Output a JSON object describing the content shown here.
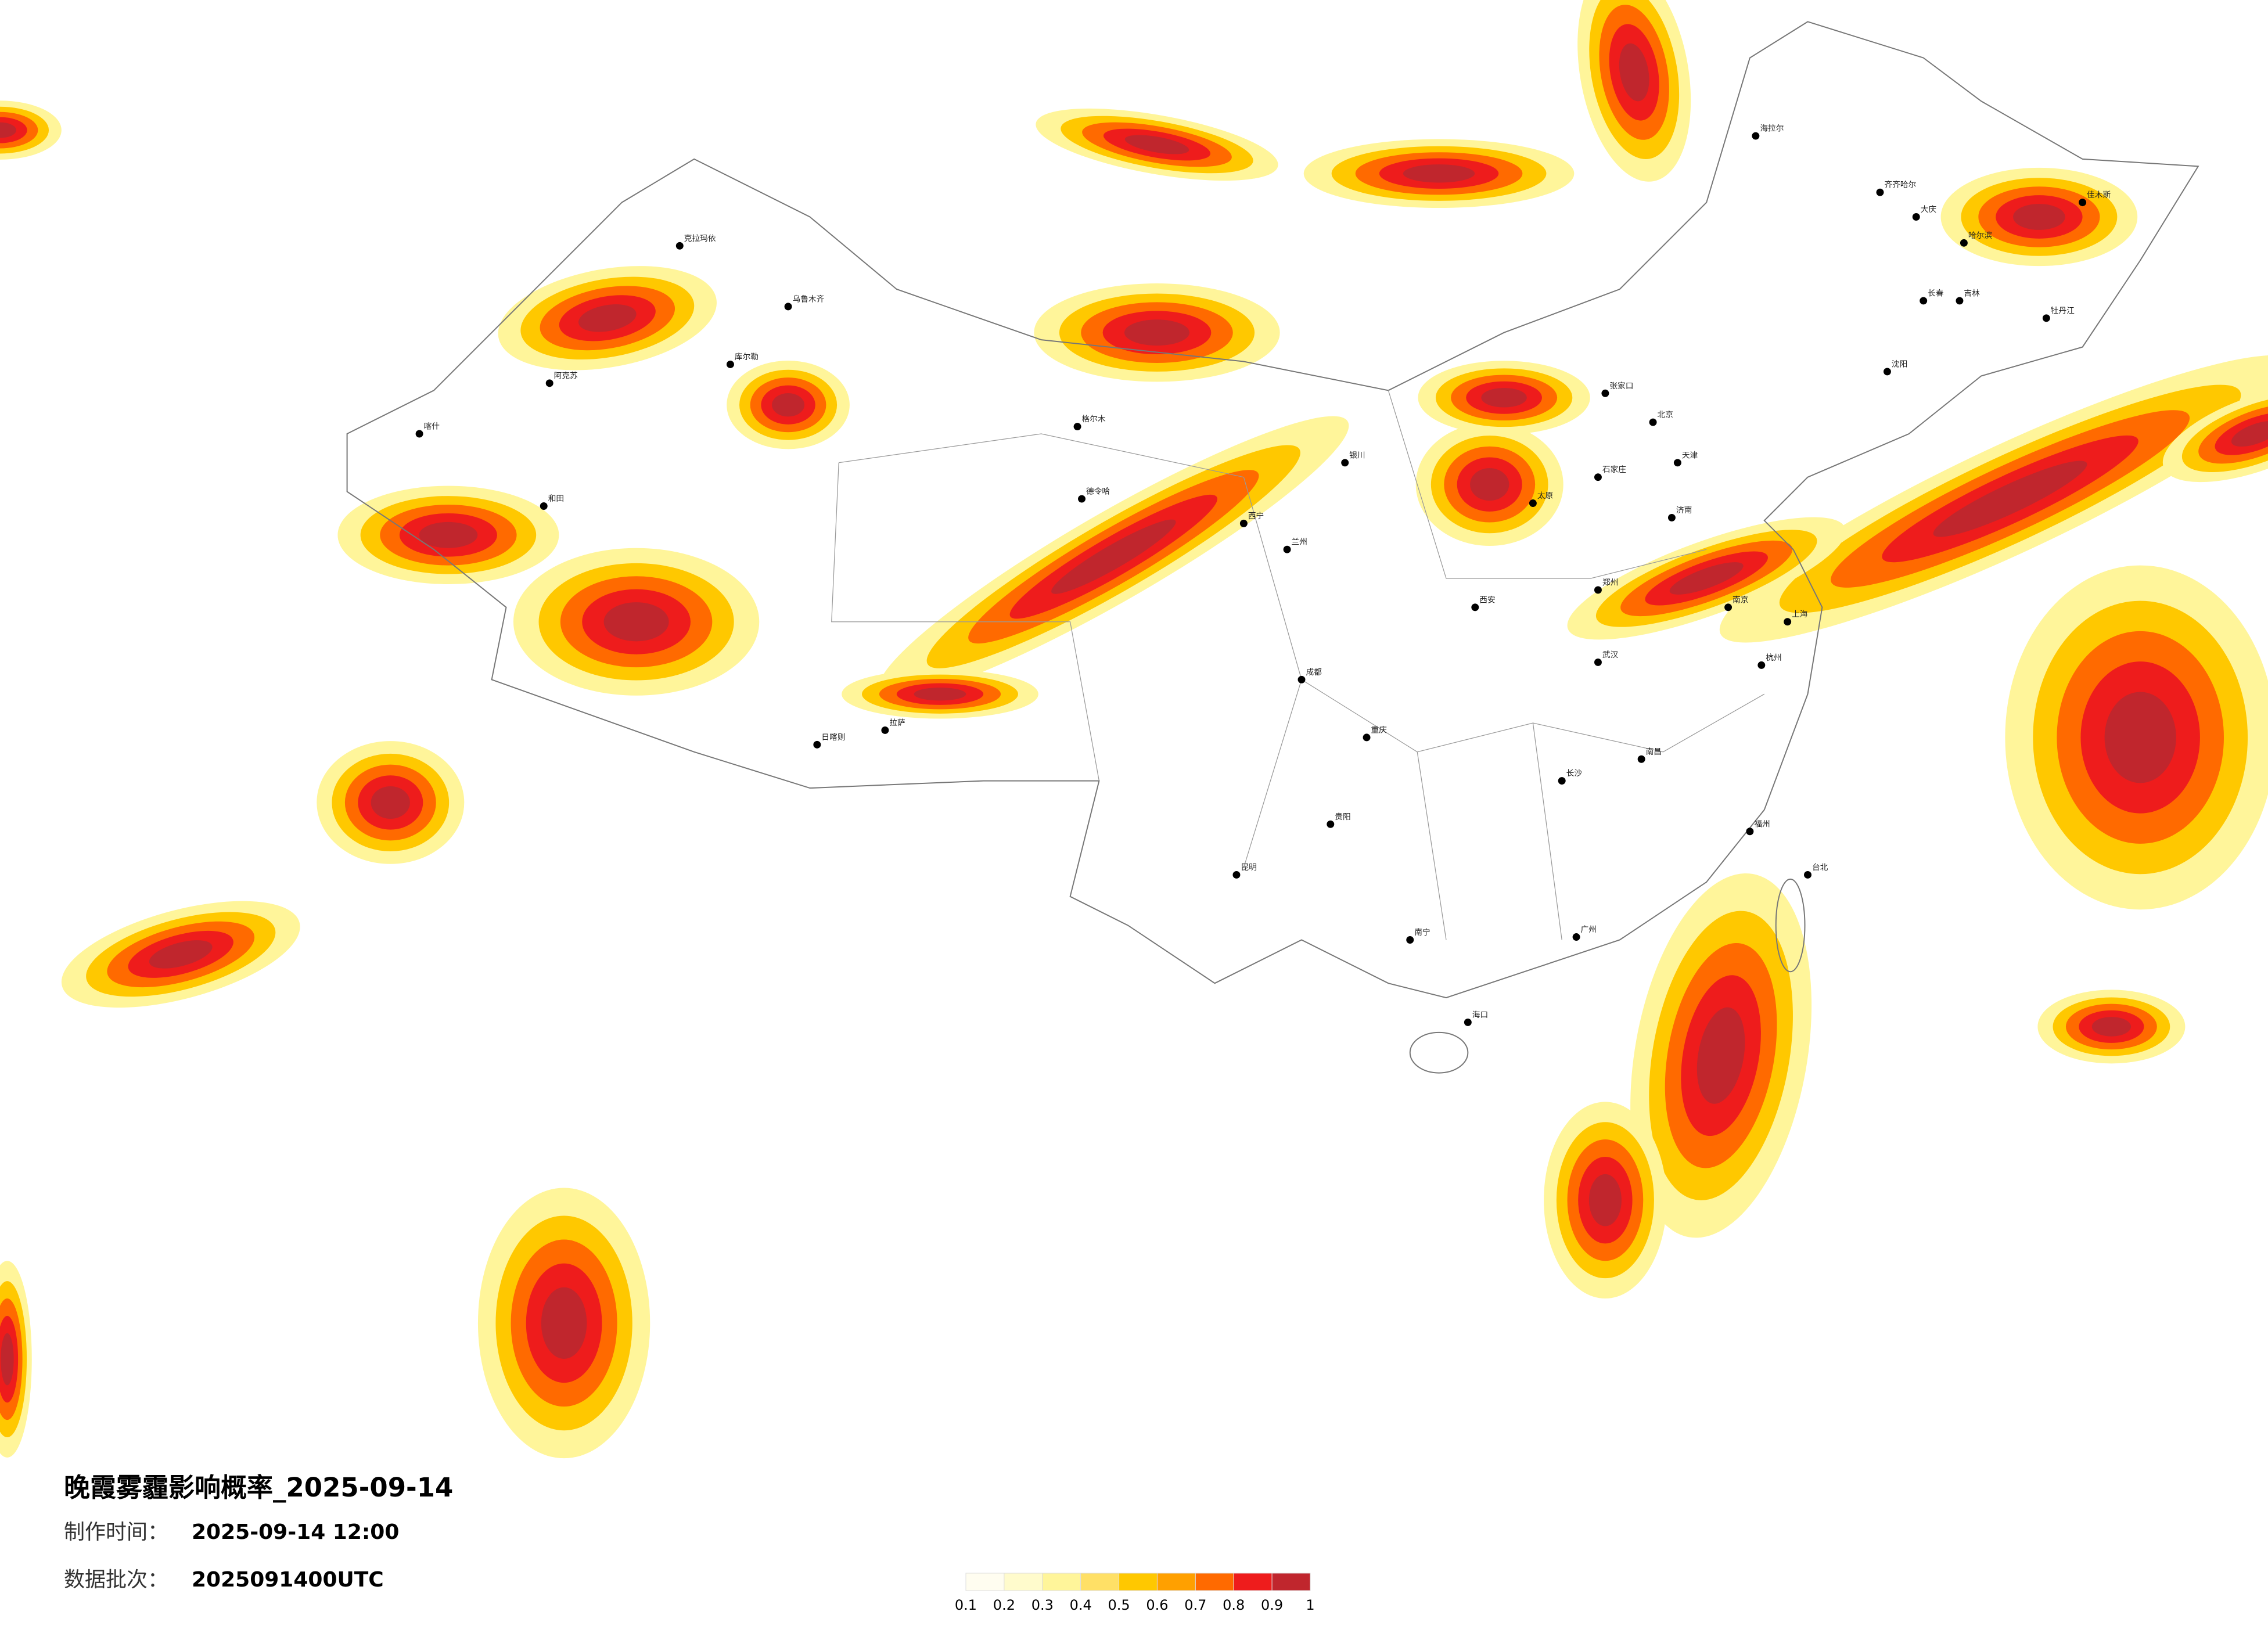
{
  "header": {
    "title": "晚霞雾霾影响概率_2025-09-14",
    "made_label": "制作时间：",
    "made_time": "2025-09-14 12:00",
    "batch_label": "数据批次：",
    "batch": "2025091400UTC"
  },
  "legend": {
    "ticks": [
      0.1,
      0.2,
      0.3,
      0.4,
      0.5,
      0.6,
      0.7,
      0.8,
      0.9,
      1
    ],
    "colors": [
      "#fffdf0",
      "#fffbcc",
      "#fff59a",
      "#ffe066",
      "#ffc800",
      "#ffa000",
      "#ff6a00",
      "#ee1c1c",
      "#c0262d"
    ]
  },
  "cities": [
    "海拉尔",
    "齐齐哈尔",
    "大庆",
    "哈尔滨",
    "长春",
    "吉林",
    "沈阳",
    "北京",
    "天津",
    "石家庄",
    "太原",
    "济南",
    "郑州",
    "西安",
    "兰州",
    "西宁",
    "银川",
    "乌鲁木齐",
    "拉萨",
    "成都",
    "重庆",
    "武汉",
    "长沙",
    "南昌",
    "南京",
    "上海",
    "杭州",
    "福州",
    "广州",
    "南宁",
    "贵阳",
    "昆明",
    "海口",
    "台北",
    "喀什",
    "和田",
    "日喀则",
    "格尔木",
    "德令哈",
    "克拉玛依",
    "库尔勒",
    "阿克苏",
    "张家口",
    "牡丹江",
    "佳木斯"
  ]
}
